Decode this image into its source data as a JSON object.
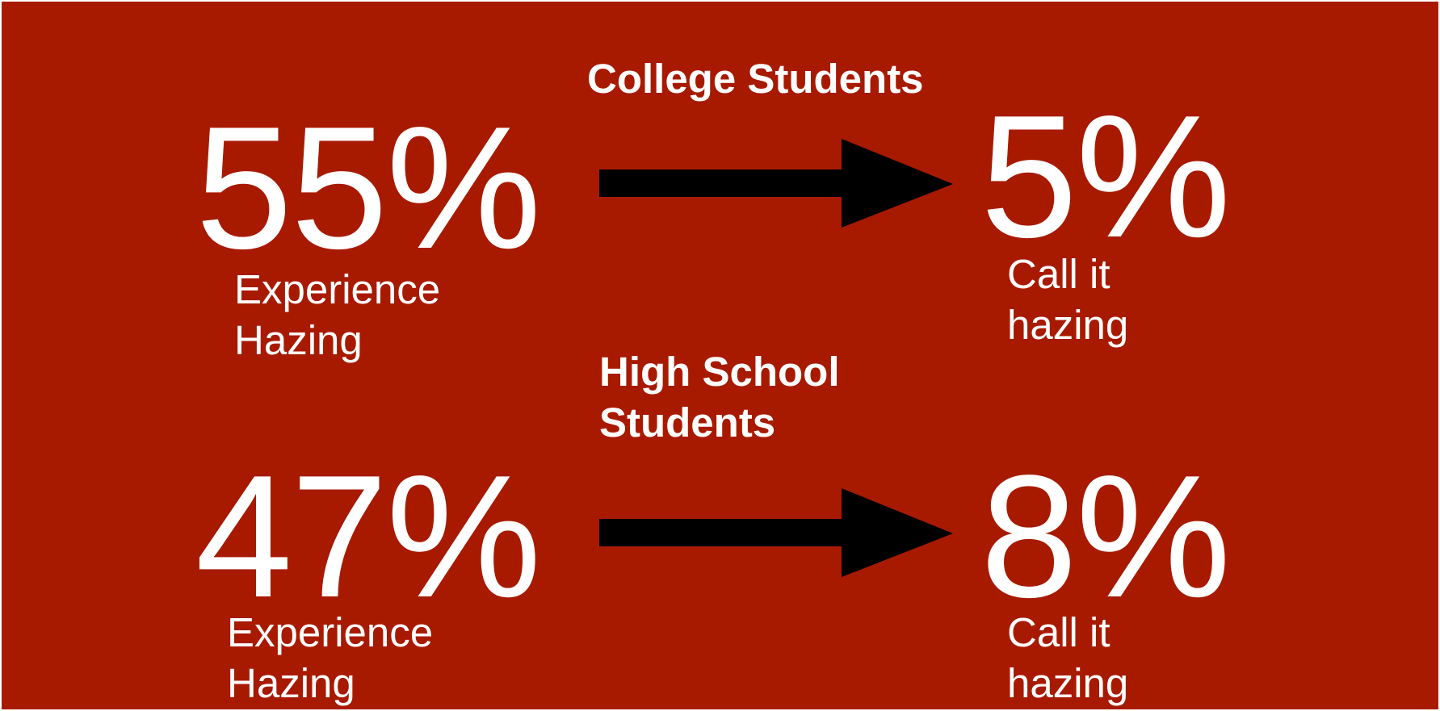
{
  "college": {
    "heading": "College Students",
    "experience_pct": "55%",
    "experience_label_line1": "Experience",
    "experience_label_line2": "Hazing",
    "call_pct": "5%",
    "call_label_line1": "Call it",
    "call_label_line2": "hazing"
  },
  "high_school": {
    "heading_line1": "High School",
    "heading_line2": "Students",
    "experience_pct": "47%",
    "experience_label_line1": "Experience",
    "experience_label_line2": "Hazing",
    "call_pct": "8%",
    "call_label_line1": "Call it",
    "call_label_line2": "hazing"
  },
  "colors": {
    "background": "#a81a00",
    "text": "#ffffff",
    "arrow": "#000000"
  },
  "icons": {
    "arrow": "right-arrow-icon"
  }
}
